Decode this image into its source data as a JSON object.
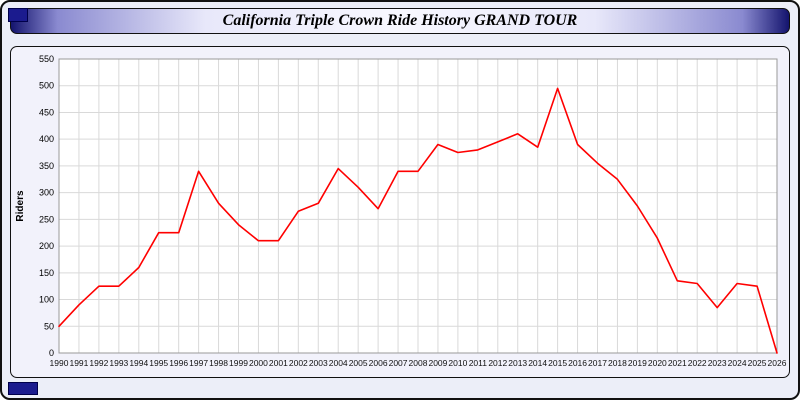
{
  "page": {
    "title": "California Triple Crown Ride History GRAND TOUR"
  },
  "chart_data": {
    "type": "line",
    "title": "California Triple Crown Ride History GRAND TOUR",
    "xlabel": "",
    "ylabel": "Riders",
    "ylim": [
      0,
      550
    ],
    "y_ticks": [
      0,
      50,
      100,
      150,
      200,
      250,
      300,
      350,
      400,
      450,
      500,
      550
    ],
    "grid": true,
    "legend": "none",
    "line_color": "#ff0000",
    "plot_bg": "#ffffff",
    "grid_color": "#d9d9d9",
    "categories": [
      1990,
      1991,
      1992,
      1993,
      1994,
      1995,
      1996,
      1997,
      1998,
      1999,
      2000,
      2001,
      2002,
      2003,
      2004,
      2005,
      2006,
      2007,
      2008,
      2009,
      2010,
      2011,
      2012,
      2013,
      2014,
      2015,
      2016,
      2017,
      2018,
      2019,
      2020,
      2021,
      2022,
      2023,
      2024,
      2025,
      2026
    ],
    "values": [
      50,
      90,
      125,
      125,
      160,
      225,
      225,
      340,
      280,
      240,
      210,
      210,
      265,
      280,
      345,
      310,
      270,
      340,
      340,
      390,
      375,
      380,
      395,
      410,
      385,
      495,
      390,
      355,
      325,
      275,
      215,
      135,
      130,
      85,
      130,
      125,
      0
    ]
  }
}
